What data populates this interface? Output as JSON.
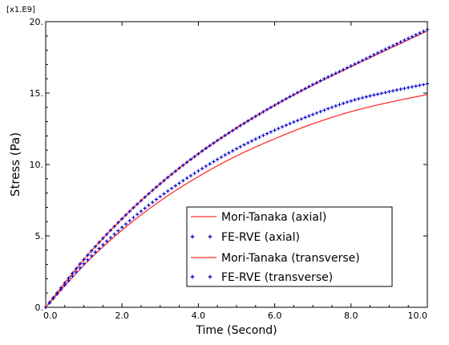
{
  "chart_data": {
    "type": "line",
    "xlabel": "Time (Second)",
    "ylabel": "Stress (Pa)",
    "y_multiplier": "[x1.E9]",
    "xlim": [
      0,
      10
    ],
    "ylim": [
      0,
      20
    ],
    "x_ticks": [
      "0.0",
      "2.0",
      "4.0",
      "6.0",
      "8.0",
      "10.0"
    ],
    "y_ticks": [
      "0.",
      "5.",
      "10.",
      "15.",
      "20."
    ],
    "grid": false,
    "legend_position": "lower-right",
    "series": [
      {
        "name": "Mori-Tanaka (axial)",
        "style": "line",
        "color": "#ff3030",
        "x": [
          0,
          1,
          2,
          3,
          4,
          5,
          6,
          7,
          8,
          9,
          10
        ],
        "y": [
          0,
          3.35,
          6.2,
          8.65,
          10.75,
          12.55,
          14.15,
          15.55,
          16.85,
          18.1,
          19.35
        ]
      },
      {
        "name": "FE-RVE (axial)",
        "style": "marker",
        "marker": "+",
        "color": "#0000cc",
        "x": [
          0,
          1,
          2,
          3,
          4,
          5,
          6,
          7,
          8,
          9,
          10
        ],
        "y": [
          0,
          3.35,
          6.2,
          8.65,
          10.75,
          12.55,
          14.15,
          15.6,
          16.9,
          18.2,
          19.45
        ]
      },
      {
        "name": "Mori-Tanaka (transverse)",
        "style": "line",
        "color": "#ff3030",
        "x": [
          0,
          1,
          2,
          3,
          4,
          5,
          6,
          7,
          8,
          9,
          10
        ],
        "y": [
          0,
          2.95,
          5.4,
          7.45,
          9.15,
          10.6,
          11.8,
          12.85,
          13.7,
          14.35,
          14.9
        ]
      },
      {
        "name": "FE-RVE (transverse)",
        "style": "marker",
        "marker": "+",
        "color": "#0000cc",
        "x": [
          0,
          1,
          2,
          3,
          4,
          5,
          6,
          7,
          8,
          9,
          10
        ],
        "y": [
          0,
          3.05,
          5.6,
          7.75,
          9.55,
          11.1,
          12.4,
          13.5,
          14.45,
          15.1,
          15.65
        ]
      }
    ]
  }
}
